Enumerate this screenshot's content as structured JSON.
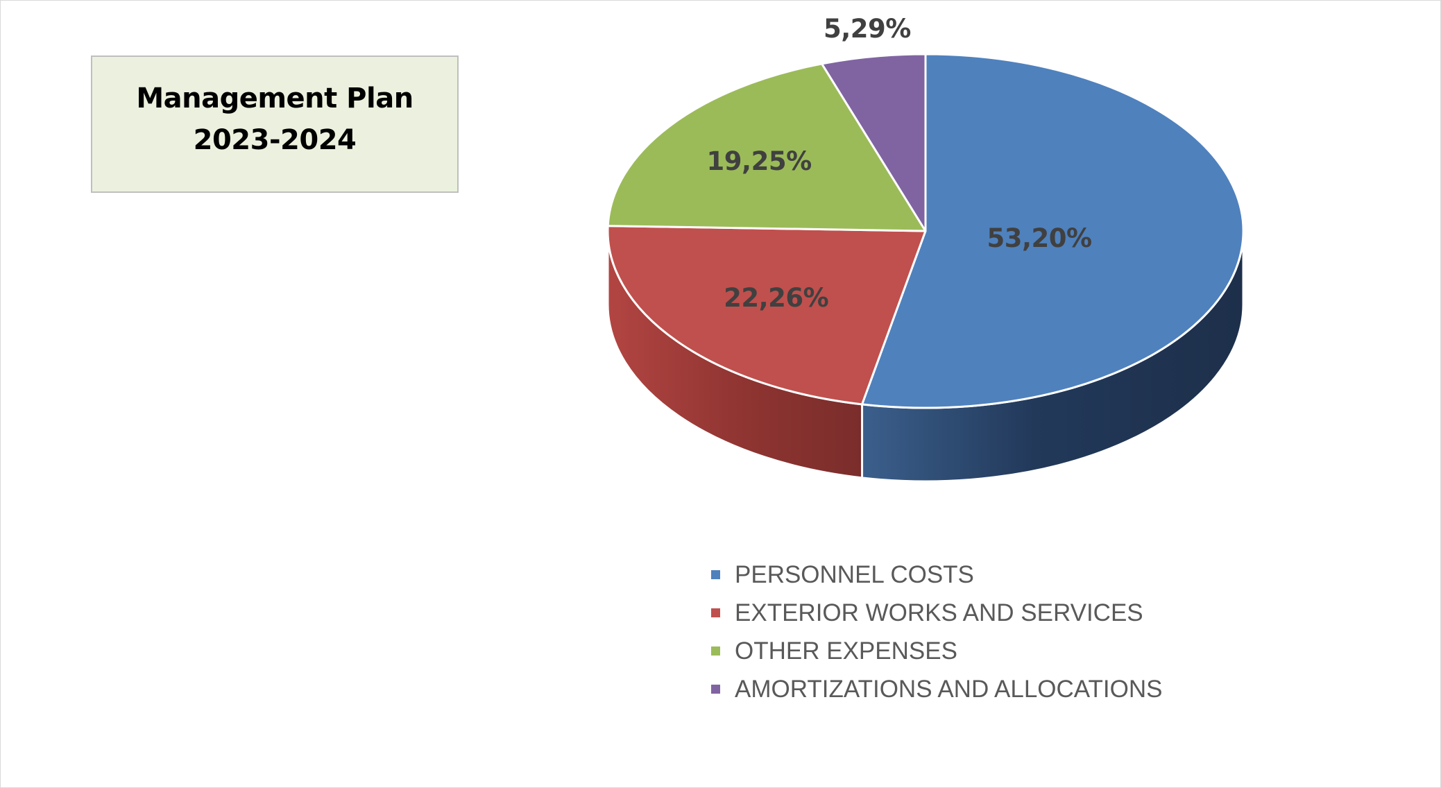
{
  "chart_data": {
    "type": "pie",
    "title": "Management Plan 2023-2024",
    "title_lines": [
      "Management Plan",
      "2023-2024"
    ],
    "style": "3d",
    "legend_position": "bottom",
    "series": [
      {
        "values": [
          53.2,
          22.26,
          19.25,
          5.29
        ],
        "data_labels": [
          "53,20%",
          "22,26%",
          "19,25%",
          "5,29%"
        ]
      }
    ],
    "categories": [
      "PERSONNEL COSTS",
      "EXTERIOR WORKS AND SERVICES",
      "OTHER EXPENSES",
      "AMORTIZATIONS AND ALLOCATIONS"
    ],
    "colors": [
      "#4f81bd",
      "#c0504d",
      "#9bbb59",
      "#8064a2"
    ]
  }
}
